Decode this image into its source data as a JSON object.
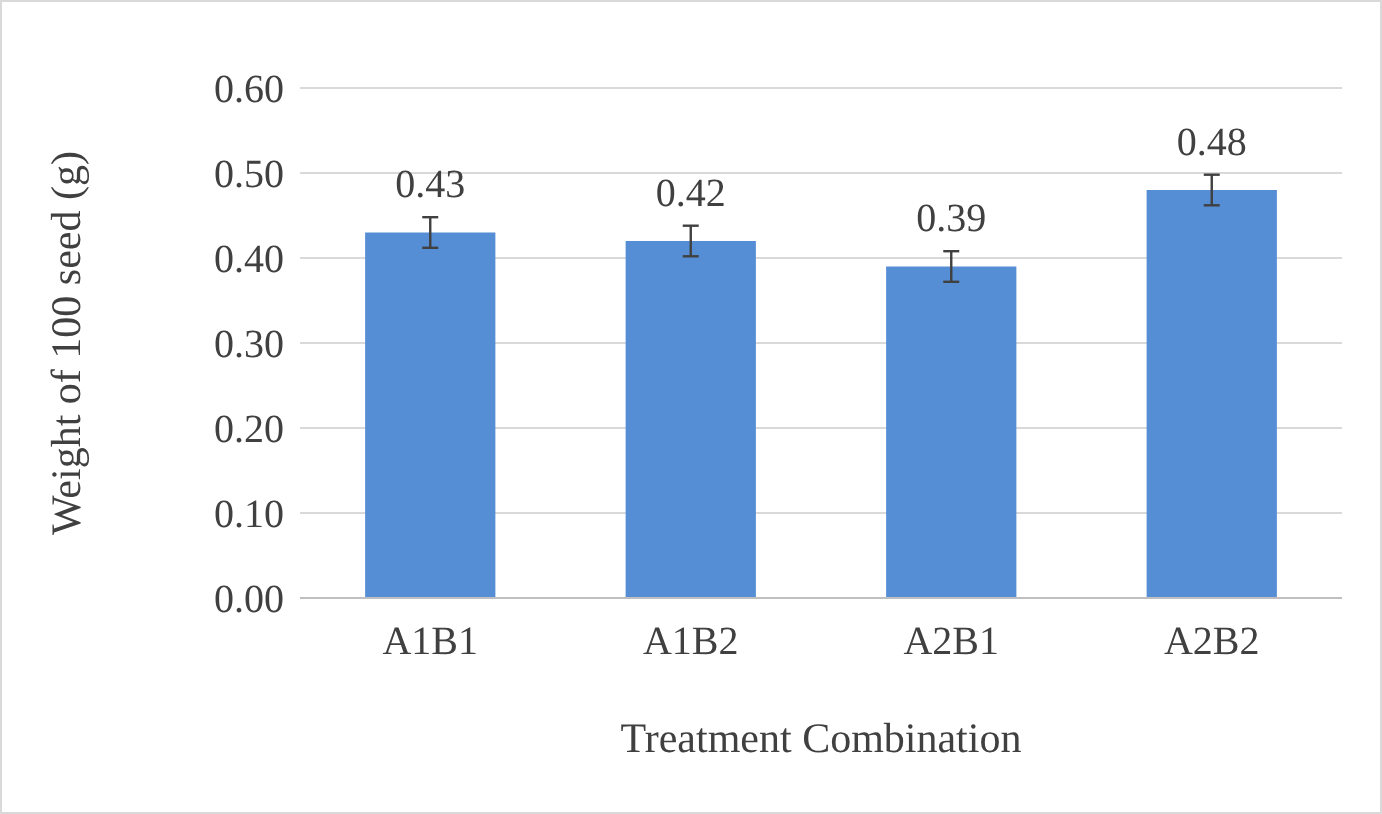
{
  "chart_data": {
    "type": "bar",
    "xlabel": "Treatment Combination",
    "ylabel": "Weight of 100 seed (g)",
    "categories": [
      "A1B1",
      "A1B2",
      "A2B1",
      "A2B2"
    ],
    "values": [
      0.43,
      0.42,
      0.39,
      0.48
    ],
    "errors": [
      0.018,
      0.018,
      0.018,
      0.018
    ],
    "color": "#558ed5",
    "ylim": [
      0,
      0.6
    ],
    "yticks": [
      {
        "value": 0,
        "label": "0.00"
      },
      {
        "value": 0.1,
        "label": "0.10"
      },
      {
        "value": 0.2,
        "label": "0.20"
      },
      {
        "value": 0.3,
        "label": "0.30"
      },
      {
        "value": 0.4,
        "label": "0.40"
      },
      {
        "value": 0.5,
        "label": "0.50"
      },
      {
        "value": 0.6,
        "label": "0.60"
      }
    ],
    "grid": "y",
    "data_labels": true
  }
}
